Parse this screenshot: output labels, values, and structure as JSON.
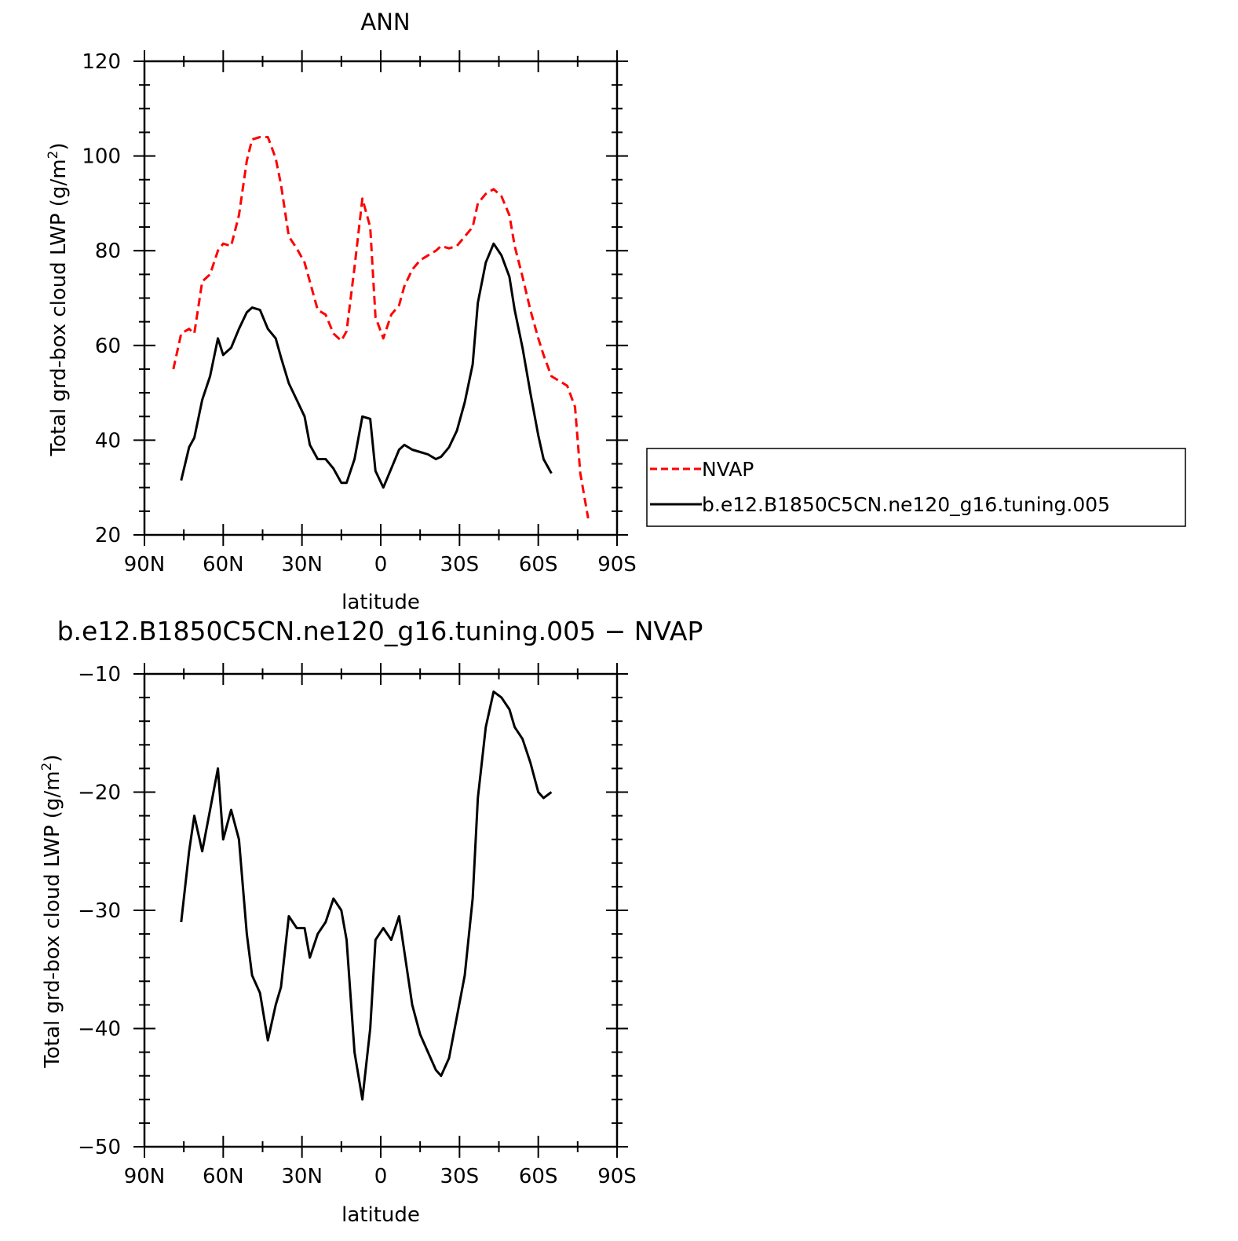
{
  "chart_data": [
    {
      "type": "line",
      "title": "ANN",
      "xlabel": "latitude",
      "ylabel": "Total grd-box cloud LWP (g/m²)",
      "ylabel_parts": {
        "base": "Total grd-box cloud LWP (g/m",
        "sup": "2",
        "end": ")"
      },
      "xlim": [
        90,
        -90
      ],
      "ylim": [
        20,
        120
      ],
      "x_ticks": [
        90,
        60,
        30,
        0,
        -30,
        -60,
        -90
      ],
      "x_tick_labels": [
        "90N",
        "60N",
        "30N",
        "0",
        "30S",
        "60S",
        "90S"
      ],
      "y_ticks": [
        20,
        40,
        60,
        80,
        100,
        120
      ],
      "y_tick_labels": [
        "20",
        "40",
        "60",
        "80",
        "100",
        "120"
      ],
      "legend": {
        "placement": "right",
        "entries": [
          "NVAP",
          "b.e12.B1850C5CN.ne120_g16.tuning.005"
        ]
      },
      "series": [
        {
          "name": "NVAP",
          "color": "#ff0000",
          "dash": true,
          "x": [
            79,
            76,
            73,
            71,
            68,
            65,
            62,
            60,
            57,
            54,
            51,
            49,
            46,
            43,
            40,
            38,
            35,
            32,
            29,
            27,
            24,
            21,
            18,
            15,
            13,
            10,
            7,
            4,
            2,
            -1,
            -4,
            -7,
            -9,
            -12,
            -15,
            -18,
            -21,
            -23,
            -26,
            -29,
            -32,
            -35,
            -37,
            -40,
            -43,
            -46,
            -49,
            -51,
            -54,
            -57,
            -60,
            -62,
            -65,
            -68,
            -71,
            -74,
            -76,
            -79
          ],
          "values": [
            55,
            62.5,
            63.5,
            62.5,
            73.5,
            75,
            80,
            81.5,
            81,
            87.5,
            99,
            103.5,
            104,
            104,
            99.5,
            94,
            83,
            80.5,
            77.5,
            73.5,
            67.5,
            66.5,
            62.5,
            61,
            63,
            76.5,
            91,
            85,
            66,
            61.5,
            66.5,
            68.5,
            72.5,
            76,
            78,
            79,
            80,
            81,
            80.5,
            81,
            83,
            85,
            90,
            92,
            93,
            91.5,
            87.5,
            81,
            74.5,
            67.5,
            61.5,
            58,
            53.5,
            52.5,
            51.5,
            47,
            33,
            23.5
          ]
        },
        {
          "name": "b.e12.B1850C5CN.ne120_g16.tuning.005",
          "color": "#000000",
          "dash": false,
          "x": [
            76,
            73,
            71,
            68,
            65,
            62,
            60,
            57,
            54,
            51,
            49,
            46,
            43,
            40,
            38,
            35,
            32,
            29,
            27,
            24,
            21,
            18,
            15,
            13,
            10,
            7,
            4,
            2,
            -1,
            -4,
            -7,
            -9,
            -12,
            -15,
            -18,
            -21,
            -23,
            -26,
            -29,
            -32,
            -35,
            -37,
            -40,
            -43,
            -46,
            -49,
            -51,
            -54,
            -57,
            -60,
            -62,
            -65
          ],
          "values": [
            31.5,
            38.5,
            40.5,
            48.5,
            53.5,
            61.5,
            58,
            59.5,
            63.5,
            67,
            68,
            67.5,
            63.5,
            61.5,
            57.5,
            52,
            48.5,
            45,
            39,
            36,
            36,
            34,
            31,
            31,
            36,
            45,
            44.5,
            33.5,
            30,
            34,
            38,
            39,
            38,
            37.5,
            37,
            36,
            36.5,
            38.5,
            42,
            48,
            56,
            69,
            77.5,
            81.5,
            79,
            74.5,
            67.5,
            59.5,
            50,
            41,
            36,
            33
          ]
        }
      ]
    },
    {
      "type": "line",
      "title": "b.e12.B1850C5CN.ne120_g16.tuning.005 − NVAP",
      "xlabel": "latitude",
      "ylabel": "Total grd-box cloud LWP (g/m²)",
      "ylabel_parts": {
        "base": "Total grd-box cloud LWP (g/m",
        "sup": "2",
        "end": ")"
      },
      "xlim": [
        90,
        -90
      ],
      "ylim": [
        -50,
        -10
      ],
      "x_ticks": [
        90,
        60,
        30,
        0,
        -30,
        -60,
        -90
      ],
      "x_tick_labels": [
        "90N",
        "60N",
        "30N",
        "0",
        "30S",
        "60S",
        "90S"
      ],
      "y_ticks": [
        -50,
        -40,
        -30,
        -20,
        -10
      ],
      "y_tick_labels": [
        "−50",
        "−40",
        "−30",
        "−20",
        "−10"
      ],
      "series": [
        {
          "color": "#000000",
          "dash": false,
          "x": [
            76,
            73,
            71,
            68,
            65,
            62,
            60,
            57,
            54,
            51,
            49,
            46,
            43,
            40,
            38,
            35,
            32,
            29,
            27,
            24,
            21,
            18,
            15,
            13,
            10,
            7,
            4,
            2,
            -1,
            -4,
            -7,
            -9,
            -12,
            -15,
            -18,
            -21,
            -23,
            -26,
            -29,
            -32,
            -35,
            -37,
            -40,
            -43,
            -46,
            -49,
            -51,
            -54,
            -57,
            -60,
            -62,
            -65
          ],
          "values": [
            -31,
            -25,
            -22,
            -25,
            -21.5,
            -18,
            -24,
            -21.5,
            -24,
            -32,
            -35.5,
            -37,
            -41,
            -38,
            -36.5,
            -30.5,
            -31.5,
            -31.5,
            -34,
            -32,
            -31,
            -29,
            -30,
            -32.5,
            -42,
            -46,
            -40,
            -32.5,
            -31.5,
            -32.5,
            -30.5,
            -33.5,
            -38,
            -40.5,
            -42,
            -43.5,
            -44,
            -42.5,
            -39,
            -35.5,
            -29,
            -20.5,
            -14.5,
            -11.5,
            -12,
            -13,
            -14.5,
            -15.5,
            -17.5,
            -20,
            -20.5,
            -20
          ]
        }
      ]
    }
  ]
}
